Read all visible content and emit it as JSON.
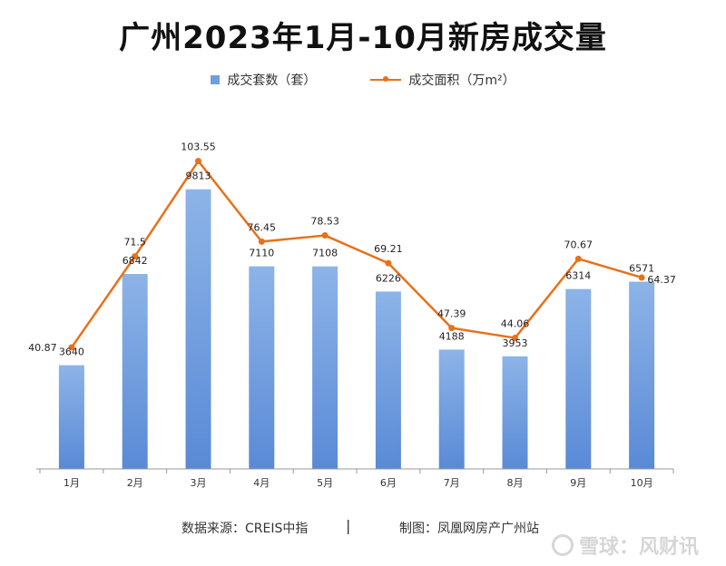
{
  "title": "广州2023年1月-10月新房成交量",
  "legend": {
    "bar_label": "成交套数（套）",
    "line_label": "成交面积（万m²）"
  },
  "footer": {
    "source": "数据来源：CREIS中指",
    "separator": "|",
    "credit": "制图：凤凰网房产广州站"
  },
  "watermark": "雪球：风财讯",
  "colors": {
    "bar": "#6f9fe0",
    "line": "#e8711a"
  },
  "chart_data": {
    "type": "bar",
    "categories": [
      "1月",
      "2月",
      "3月",
      "4月",
      "5月",
      "6月",
      "7月",
      "8月",
      "9月",
      "10月"
    ],
    "series": [
      {
        "name": "成交套数（套）",
        "type": "bar",
        "values": [
          3640,
          6842,
          9813,
          7110,
          7108,
          6226,
          4188,
          3953,
          6314,
          6571
        ]
      },
      {
        "name": "成交面积（万m²）",
        "type": "line",
        "values": [
          40.87,
          71.5,
          103.55,
          76.45,
          78.53,
          69.21,
          47.39,
          44.06,
          70.67,
          64.37
        ]
      }
    ],
    "bar_ylim": [
      0,
      12000
    ],
    "line_ylim": [
      0,
      115
    ],
    "grid": false,
    "legend_position": "top"
  }
}
